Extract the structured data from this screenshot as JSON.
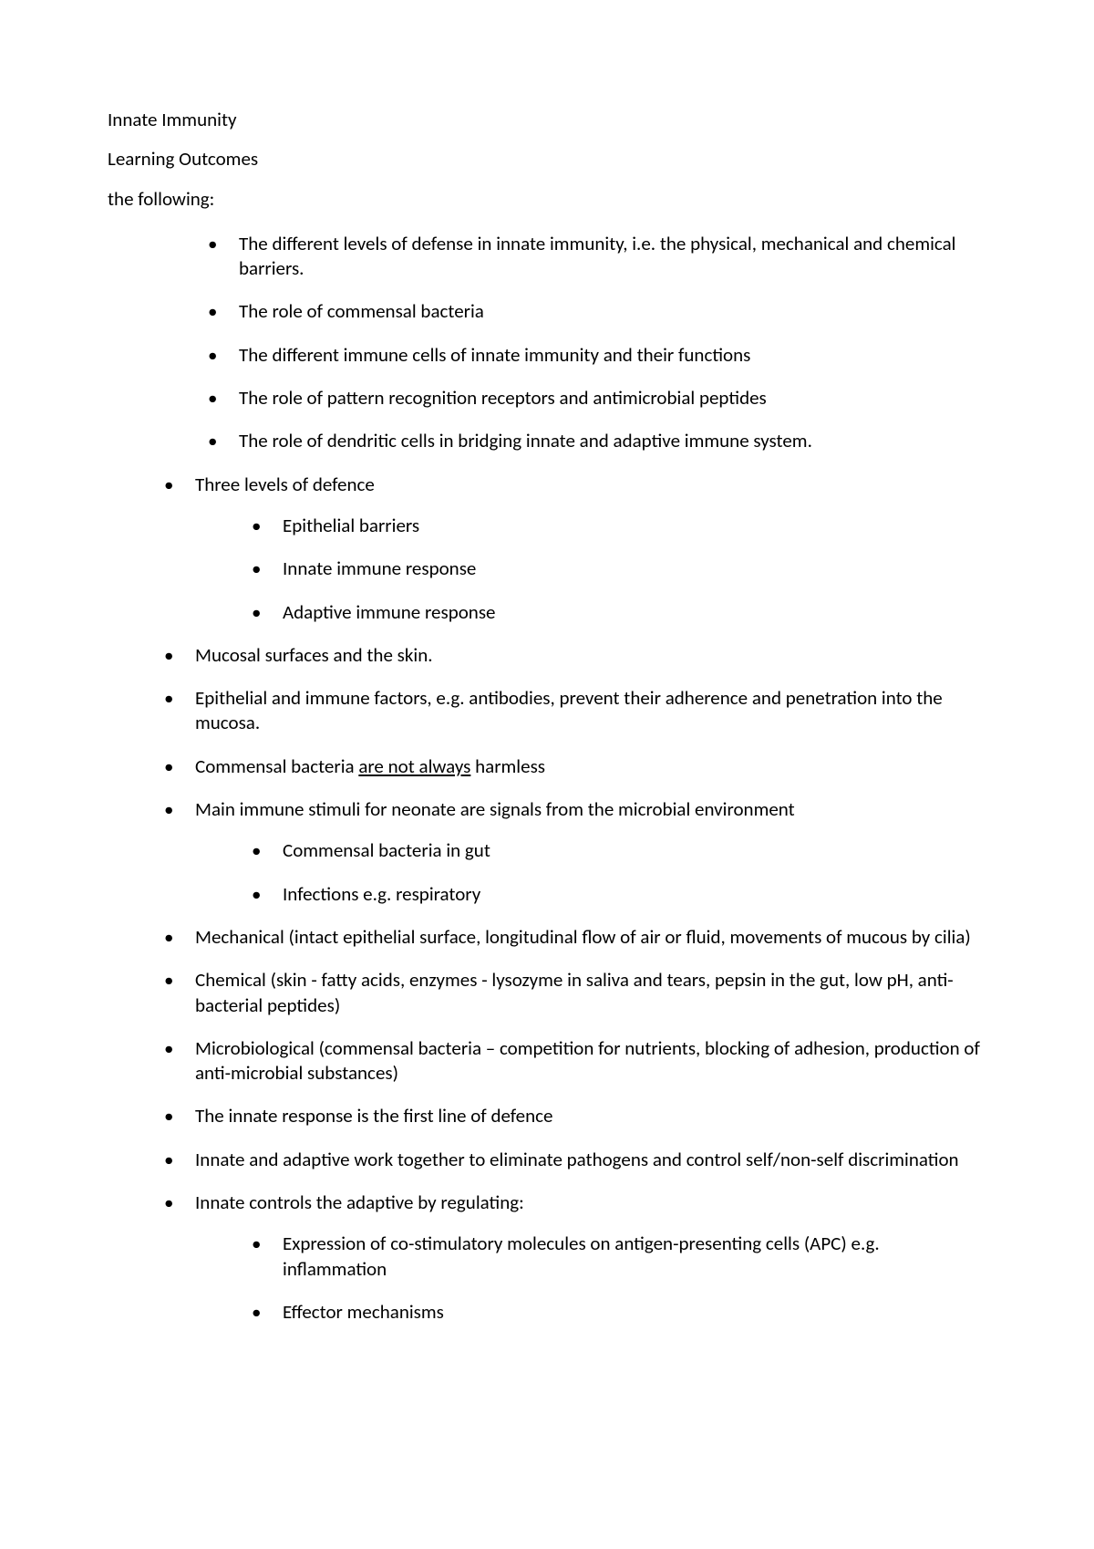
{
  "title": "Innate Immunity",
  "subtitle": "Learning Outcomes",
  "lead": "the following:",
  "intro_bullets": [
    "The different levels of defense in innate immunity, i.e. the physical, mechanical and chemical barriers.",
    "The role of commensal bacteria",
    "The different immune cells of innate immunity and their functions",
    "The role of pattern recognition receptors and antimicrobial peptides",
    "The role of dendritic cells in bridging innate and adaptive immune system."
  ],
  "items": [
    {
      "text": "Three levels of defence",
      "sub": [
        "Epithelial barriers",
        "Innate immune response",
        "Adaptive immune response"
      ]
    },
    {
      "text": "Mucosal surfaces and the skin."
    },
    {
      "text": "Epithelial and immune factors, e.g. antibodies, prevent their adherence and penetration into the mucosa."
    },
    {
      "pre": "Commensal bacteria ",
      "underlined": "are not always",
      "post": " harmless"
    },
    {
      "text": "Main immune stimuli for neonate are signals from the microbial environment",
      "sub": [
        "Commensal bacteria in gut",
        "Infections e.g. respiratory"
      ]
    },
    {
      "text": "Mechanical (intact epithelial surface, longitudinal flow of air or fluid, movements of mucous by cilia)"
    },
    {
      "text": "Chemical (skin - fatty acids, enzymes - lysozyme in saliva and tears, pepsin in the gut, low pH, anti-bacterial peptides)"
    },
    {
      "text": "Microbiological (commensal bacteria – competition for nutrients, blocking of adhesion, production of anti-microbial substances)"
    },
    {
      "text": "The innate response is the first line of defence"
    },
    {
      "text": "Innate and adaptive work together to eliminate pathogens and control self/non-self discrimination"
    },
    {
      "text": "Innate controls the adaptive by regulating:",
      "sub": [
        "Expression of co-stimulatory molecules on antigen-presenting cells (APC) e.g. inflammation",
        "Effector mechanisms"
      ]
    }
  ]
}
